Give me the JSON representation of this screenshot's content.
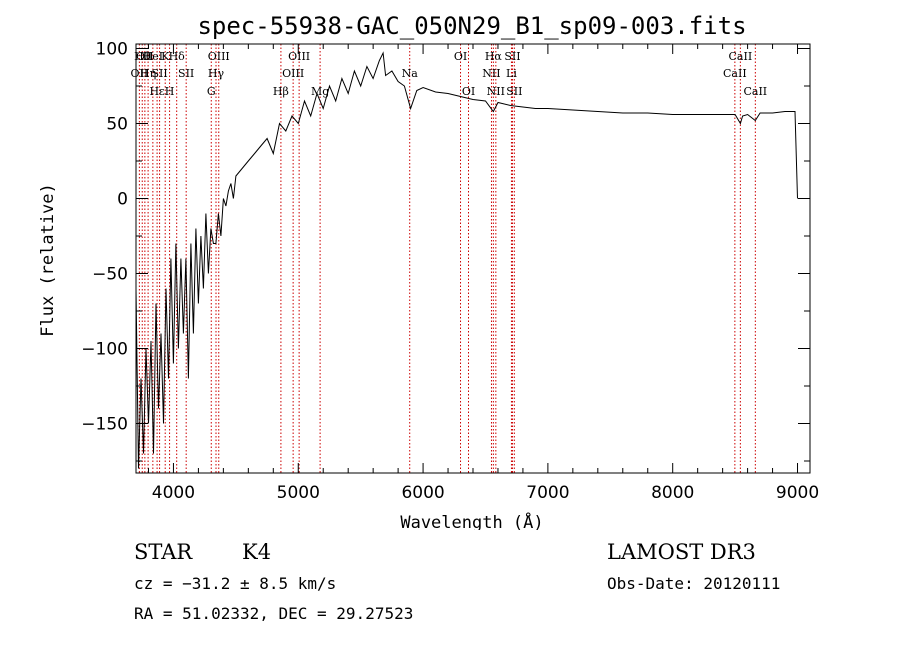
{
  "chart_data": {
    "type": "line",
    "title": "spec-55938-GAC_050N29_B1_sp09-003.fits",
    "xlabel": "Wavelength (Å)",
    "ylabel": "Flux (relative)",
    "xlim": [
      3700,
      9100
    ],
    "ylim": [
      -183,
      103
    ],
    "x_ticks": [
      4000,
      5000,
      6000,
      7000,
      8000,
      9000
    ],
    "y_ticks": [
      -150,
      -100,
      -50,
      0,
      50,
      100
    ],
    "grid": false,
    "legend": "none",
    "colors": {
      "spectrum": "#000000",
      "lines": "#cc0000"
    },
    "series": [
      {
        "x": [
          3700,
          3720,
          3740,
          3760,
          3780,
          3800,
          3820,
          3840,
          3860,
          3880,
          3900,
          3920,
          3940,
          3960,
          3980,
          4000,
          4020,
          4040,
          4060,
          4080,
          4100,
          4120,
          4140,
          4160,
          4180,
          4200,
          4220,
          4240,
          4260,
          4280,
          4300,
          4320,
          4340,
          4360,
          4380,
          4400,
          4420,
          4440,
          4460,
          4480,
          4500,
          4550,
          4600,
          4650,
          4700,
          4750,
          4800,
          4850,
          4900,
          4950,
          5000,
          5050,
          5100,
          5150,
          5200,
          5250,
          5300,
          5350,
          5400,
          5450,
          5500,
          5550,
          5600,
          5650,
          5680,
          5700,
          5750,
          5800,
          5850,
          5900,
          5950,
          6000,
          6100,
          6200,
          6300,
          6400,
          6500,
          6563,
          6600,
          6700,
          6800,
          6900,
          7000,
          7200,
          7400,
          7600,
          7800,
          8000,
          8200,
          8400,
          8500,
          8542,
          8560,
          8600,
          8662,
          8700,
          8800,
          8900,
          8950,
          8980,
          9000
        ],
        "y": [
          -60,
          -180,
          -120,
          -170,
          -100,
          -150,
          -95,
          -170,
          -70,
          -140,
          -90,
          -150,
          -60,
          -120,
          -40,
          -110,
          -30,
          -100,
          -40,
          -90,
          -40,
          -120,
          -30,
          -90,
          -20,
          -70,
          -25,
          -60,
          -10,
          -50,
          -20,
          -30,
          -30,
          -10,
          -25,
          0,
          -5,
          5,
          10,
          0,
          15,
          20,
          25,
          30,
          35,
          40,
          30,
          50,
          45,
          55,
          50,
          65,
          55,
          70,
          60,
          75,
          65,
          80,
          70,
          85,
          75,
          88,
          80,
          92,
          97,
          82,
          85,
          78,
          75,
          60,
          72,
          74,
          71,
          70,
          68,
          66,
          65,
          58,
          64,
          62,
          61,
          60,
          60,
          59,
          58,
          57,
          57,
          56,
          56,
          56,
          56,
          50,
          55,
          56,
          52,
          57,
          57,
          58,
          58,
          58,
          0
        ]
      }
    ],
    "spectral_lines": [
      {
        "x": 3727,
        "label": "OII",
        "row": 2
      },
      {
        "x": 3750,
        "label": "Hθ",
        "row": 1
      },
      {
        "x": 3771,
        "label": "OII",
        "row": 1
      },
      {
        "x": 3797,
        "label": "Hη",
        "row": 2
      },
      {
        "x": 3835,
        "label": "HeI",
        "row": 1
      },
      {
        "x": 3869,
        "label": "Hε",
        "row": 3
      },
      {
        "x": 3889,
        "label": "SII",
        "row": 2
      },
      {
        "x": 3934,
        "label": "K",
        "row": 1
      },
      {
        "x": 3969,
        "label": "H",
        "row": 3
      },
      {
        "x": 4026,
        "label": "Hδ",
        "row": 1
      },
      {
        "x": 4102,
        "label": "SII",
        "row": 2
      },
      {
        "x": 4303,
        "label": "G",
        "row": 3
      },
      {
        "x": 4341,
        "label": "Hγ",
        "row": 2
      },
      {
        "x": 4363,
        "label": "OIII",
        "row": 1
      },
      {
        "x": 4861,
        "label": "Hβ",
        "row": 3
      },
      {
        "x": 4959,
        "label": "OIII",
        "row": 2
      },
      {
        "x": 5007,
        "label": "OIII",
        "row": 1
      },
      {
        "x": 5175,
        "label": "Mg",
        "row": 3
      },
      {
        "x": 5893,
        "label": "Na",
        "row": 2
      },
      {
        "x": 6300,
        "label": "OI",
        "row": 1
      },
      {
        "x": 6364,
        "label": "OI",
        "row": 3
      },
      {
        "x": 6548,
        "label": "NII",
        "row": 2
      },
      {
        "x": 6563,
        "label": "Hα",
        "row": 1
      },
      {
        "x": 6583,
        "label": "NII",
        "row": 3
      },
      {
        "x": 6708,
        "label": "Li",
        "row": 2
      },
      {
        "x": 6716,
        "label": "SII",
        "row": 1
      },
      {
        "x": 6731,
        "label": "SII",
        "row": 3
      },
      {
        "x": 8498,
        "label": "CaII",
        "row": 2
      },
      {
        "x": 8542,
        "label": "CaII",
        "row": 1
      },
      {
        "x": 8662,
        "label": "CaII",
        "row": 3
      }
    ]
  },
  "info": {
    "class": "STAR",
    "subclass": "K4",
    "survey": "LAMOST DR3",
    "cz": "cz = −31.2 ± 8.5 km/s",
    "obs_date": "Obs-Date: 20120111",
    "coords": "RA =  51.02332, DEC =  29.27523"
  }
}
